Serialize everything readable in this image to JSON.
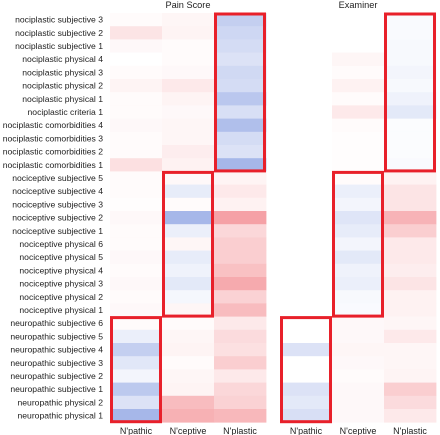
{
  "chart_data": {
    "type": "heatmap",
    "color_scale": {
      "negative": "#3a5fcd",
      "neutral": "#ffffff",
      "positive": "#e8202a",
      "range": [
        -1,
        1
      ]
    },
    "highlight_color": "#e8202a",
    "row_labels": [
      "nociplastic subjective 3",
      "nociplastic subjective 2",
      "nociplastic subjective 1",
      "nociplastic physical 4",
      "nociplastic physical 3",
      "nociplastic physical 2",
      "nociplastic physical 1",
      "nociplastic criteria 1",
      "nociplastic comorbidities 4",
      "nociplastic comorbidities 3",
      "nociplastic comorbidities 2",
      "nociplastic comorbidities 1",
      "nociceptive subjective 5",
      "nociceptive subjective 4",
      "nociceptive subjective 3",
      "nociceptive subjective 2",
      "nociceptive subjective 1",
      "nociceptive physical 6",
      "nociceptive physical 5",
      "nociceptive physical 4",
      "nociceptive physical 3",
      "nociceptive physical 2",
      "nociceptive physical 1",
      "neuropathic subjective 6",
      "neuropathic subjective 5",
      "neuropathic subjective 4",
      "neuropathic subjective 3",
      "neuropathic subjective 2",
      "neuropathic subjective 1",
      "neuropathic physical 2",
      "neuropathic physical 1"
    ],
    "panels": [
      {
        "title": "Pain Score",
        "columns": [
          "N'pathic",
          "N'ceptive",
          "N'plastic"
        ],
        "values": [
          [
            0.02,
            0.04,
            -0.3
          ],
          [
            0.12,
            0.05,
            -0.25
          ],
          [
            0.03,
            0.02,
            -0.22
          ],
          [
            0.0,
            0.02,
            -0.18
          ],
          [
            0.02,
            0.03,
            -0.24
          ],
          [
            0.05,
            0.1,
            -0.22
          ],
          [
            0.02,
            0.05,
            -0.35
          ],
          [
            0.02,
            0.03,
            -0.2
          ],
          [
            0.03,
            0.04,
            -0.4
          ],
          [
            0.02,
            0.04,
            -0.22
          ],
          [
            0.02,
            0.08,
            -0.18
          ],
          [
            0.14,
            0.06,
            -0.45
          ],
          [
            0.02,
            0.03,
            0.05
          ],
          [
            0.02,
            -0.12,
            0.1
          ],
          [
            0.01,
            0.02,
            0.06
          ],
          [
            0.03,
            -0.45,
            0.42
          ],
          [
            0.02,
            -0.1,
            0.18
          ],
          [
            0.02,
            0.04,
            0.22
          ],
          [
            0.03,
            -0.12,
            0.22
          ],
          [
            0.02,
            -0.08,
            0.28
          ],
          [
            0.03,
            -0.14,
            0.38
          ],
          [
            0.02,
            -0.05,
            0.2
          ],
          [
            0.03,
            0.04,
            0.3
          ],
          [
            0.02,
            0.02,
            0.1
          ],
          [
            -0.1,
            0.04,
            0.16
          ],
          [
            -0.3,
            0.05,
            0.14
          ],
          [
            -0.15,
            0.02,
            0.22
          ],
          [
            -0.06,
            0.04,
            0.1
          ],
          [
            -0.34,
            0.05,
            0.18
          ],
          [
            -0.18,
            0.3,
            0.2
          ],
          [
            -0.45,
            0.35,
            0.32
          ]
        ]
      },
      {
        "title": "Examiner",
        "columns": [
          "N'pathic",
          "N'ceptive",
          "N'plastic"
        ],
        "values": [
          [
            0.0,
            0.0,
            -0.03
          ],
          [
            0.0,
            0.0,
            -0.03
          ],
          [
            0.0,
            0.0,
            -0.04
          ],
          [
            0.0,
            0.04,
            -0.04
          ],
          [
            0.0,
            0.02,
            -0.06
          ],
          [
            0.0,
            0.06,
            -0.04
          ],
          [
            0.0,
            0.02,
            -0.08
          ],
          [
            0.0,
            0.1,
            -0.14
          ],
          [
            0.0,
            0.02,
            -0.02
          ],
          [
            0.0,
            0.01,
            -0.02
          ],
          [
            0.0,
            0.01,
            -0.02
          ],
          [
            0.0,
            0.01,
            -0.03
          ],
          [
            0.0,
            0.02,
            0.06
          ],
          [
            0.0,
            -0.1,
            0.12
          ],
          [
            0.0,
            -0.06,
            0.12
          ],
          [
            0.0,
            -0.16,
            0.34
          ],
          [
            0.0,
            -0.12,
            0.22
          ],
          [
            0.0,
            -0.06,
            0.1
          ],
          [
            0.0,
            -0.14,
            0.1
          ],
          [
            0.0,
            -0.08,
            0.08
          ],
          [
            0.0,
            -0.1,
            0.12
          ],
          [
            0.0,
            -0.04,
            0.06
          ],
          [
            0.0,
            -0.03,
            0.06
          ],
          [
            0.0,
            0.03,
            0.04
          ],
          [
            0.0,
            0.03,
            0.1
          ],
          [
            -0.18,
            0.04,
            0.04
          ],
          [
            0.0,
            0.03,
            0.04
          ],
          [
            0.0,
            0.02,
            0.05
          ],
          [
            -0.18,
            0.03,
            0.22
          ],
          [
            -0.14,
            0.03,
            0.16
          ],
          [
            -0.2,
            0.03,
            0.1
          ]
        ]
      }
    ],
    "highlighted_blocks": [
      {
        "column": "N'plastic",
        "first_row": "nociplastic subjective 3",
        "last_row": "nociplastic comorbidities 1"
      },
      {
        "column": "N'ceptive",
        "first_row": "nociceptive subjective 5",
        "last_row": "nociceptive physical 1"
      },
      {
        "column": "N'pathic",
        "first_row": "neuropathic subjective 6",
        "last_row": "neuropathic physical 1"
      }
    ]
  }
}
